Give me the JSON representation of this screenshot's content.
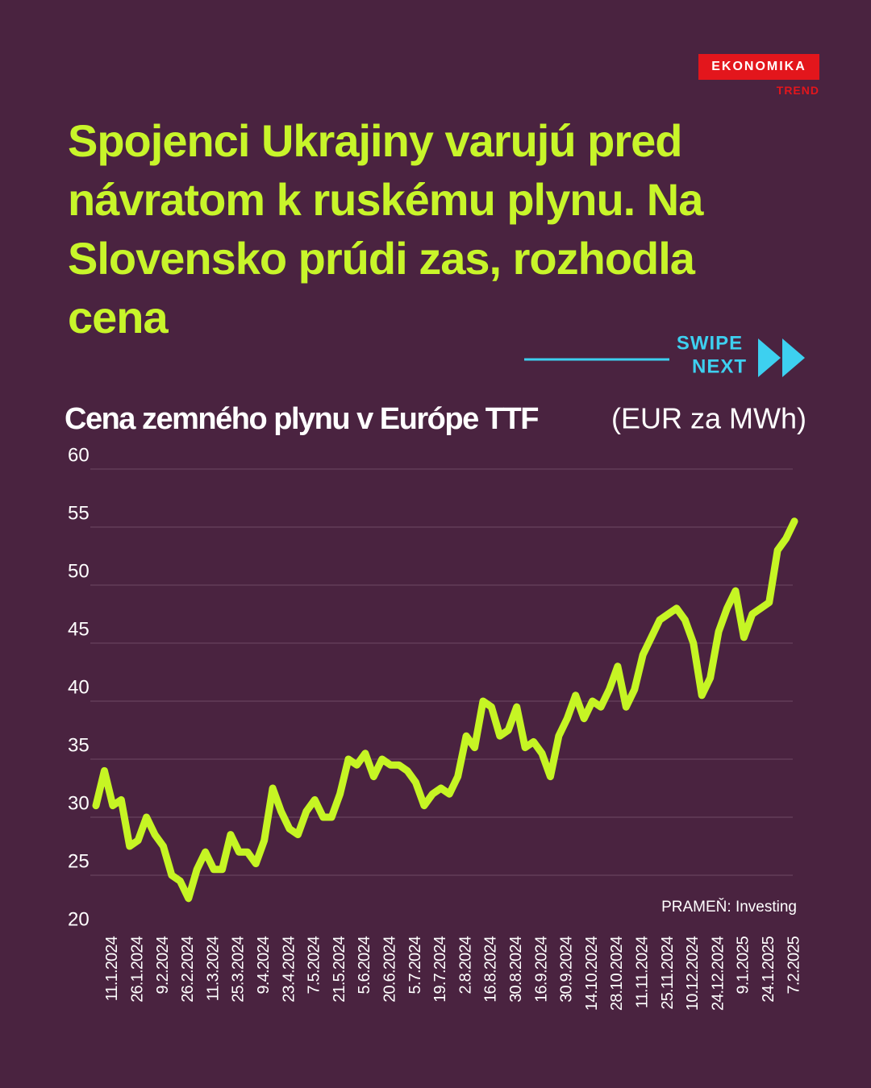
{
  "brand": {
    "name": "EKONOMIKA",
    "sub": "TREND"
  },
  "headline": "Spojenci Ukrajiny varujú pred návratom k ruskému plynu. Na Slovensko prúdi zas, rozhodla cena",
  "swipe": {
    "line1": "SWIPE",
    "line2": "NEXT"
  },
  "chart_data": {
    "type": "line",
    "title": "Cena zemného plynu v Európe TTF",
    "subtitle": "(EUR za MWh)",
    "source": "PRAMEŇ: Investing",
    "categories": [
      null,
      null,
      "11.1.2024",
      null,
      null,
      "26.1.2024",
      null,
      null,
      "9.2.2024",
      null,
      null,
      "26.2.2024",
      null,
      null,
      "11.3.2024",
      null,
      null,
      "25.3.2024",
      null,
      null,
      "9.4.2024",
      null,
      null,
      "23.4.2024",
      null,
      null,
      "7.5.2024",
      null,
      null,
      "21.5.2024",
      null,
      null,
      "5.6.2024",
      null,
      null,
      "20.6.2024",
      null,
      null,
      "5.7.2024",
      null,
      null,
      "19.7.2024",
      null,
      null,
      "2.8.2024",
      null,
      null,
      "16.8.2024",
      null,
      null,
      "30.8.2024",
      null,
      null,
      "16.9.2024",
      null,
      null,
      "30.9.2024",
      null,
      null,
      "14.10.2024",
      null,
      null,
      "28.10.2024",
      null,
      null,
      "11.11.2024",
      null,
      null,
      "25.11.2024",
      null,
      null,
      "10.12.2024",
      null,
      null,
      "24.12.2024",
      null,
      null,
      "9.1.2025",
      null,
      null,
      "24.1.2025",
      null,
      null,
      "7.2.2025"
    ],
    "series": [
      {
        "name": "TTF",
        "color": "#c6f524",
        "values": [
          31,
          34,
          31,
          31.5,
          27.5,
          28,
          30,
          28.5,
          27.5,
          25,
          24.5,
          23,
          25.5,
          27,
          25.5,
          25.5,
          28.5,
          27,
          27,
          26,
          28,
          32.5,
          30.5,
          29,
          28.5,
          30.5,
          31.5,
          30,
          30,
          32,
          35,
          34.5,
          35.5,
          33.5,
          35,
          34.5,
          34.5,
          34,
          33,
          31,
          32,
          32.5,
          32,
          33.5,
          37,
          36,
          40,
          39.5,
          37,
          37.5,
          39.5,
          36,
          36.5,
          35.5,
          33.5,
          37,
          38.5,
          40.5,
          38.5,
          40,
          39.5,
          41,
          43,
          39.5,
          41,
          44,
          45.5,
          47,
          47.5,
          48,
          47,
          45,
          40.5,
          42,
          46,
          48,
          49.5,
          45.5,
          47.5,
          48,
          48.5,
          53,
          54,
          55.5
        ]
      }
    ],
    "ylim": [
      20,
      60
    ],
    "yticks": [
      20,
      25,
      30,
      35,
      40,
      45,
      50,
      55,
      60
    ],
    "grid": true
  }
}
